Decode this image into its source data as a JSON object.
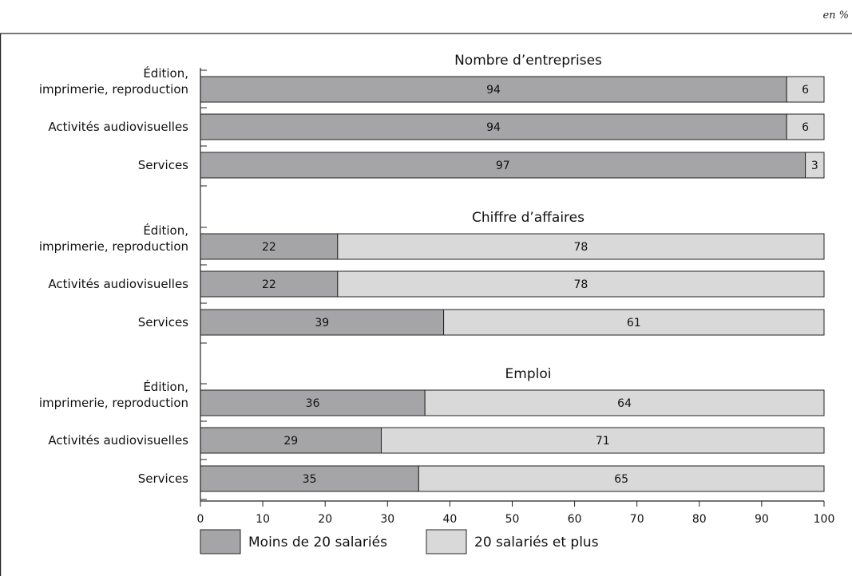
{
  "unit_label": "en %",
  "colors": {
    "moins": "#a5a5a8",
    "plus": "#d9d9d9"
  },
  "chart_data": {
    "type": "bar",
    "orientation": "horizontal",
    "stacked": true,
    "xlim": [
      0,
      100
    ],
    "xticks": [
      "0",
      "10",
      "20",
      "30",
      "40",
      "50",
      "60",
      "70",
      "80",
      "90",
      "100"
    ],
    "legend_position": "bottom",
    "legend": [
      "Moins de 20 salariés",
      "20 salariés et plus"
    ],
    "sections": [
      {
        "title": "Nombre d’entreprises",
        "categories": [
          {
            "label_lines": [
              "Édition,",
              "imprimerie, reproduction"
            ],
            "values": [
              94,
              6
            ]
          },
          {
            "label_lines": [
              "Activités audiovisuelles"
            ],
            "values": [
              94,
              6
            ]
          },
          {
            "label_lines": [
              "Services"
            ],
            "values": [
              97,
              3
            ]
          }
        ]
      },
      {
        "title": "Chiffre d’affaires",
        "categories": [
          {
            "label_lines": [
              "Édition,",
              "imprimerie, reproduction"
            ],
            "values": [
              22,
              78
            ]
          },
          {
            "label_lines": [
              "Activités audiovisuelles"
            ],
            "values": [
              22,
              78
            ]
          },
          {
            "label_lines": [
              "Services"
            ],
            "values": [
              39,
              61
            ]
          }
        ]
      },
      {
        "title": "Emploi",
        "categories": [
          {
            "label_lines": [
              "Édition,",
              "imprimerie, reproduction"
            ],
            "values": [
              36,
              64
            ]
          },
          {
            "label_lines": [
              "Activités audiovisuelles"
            ],
            "values": [
              29,
              71
            ]
          },
          {
            "label_lines": [
              "Services"
            ],
            "values": [
              35,
              65
            ]
          }
        ]
      }
    ]
  }
}
